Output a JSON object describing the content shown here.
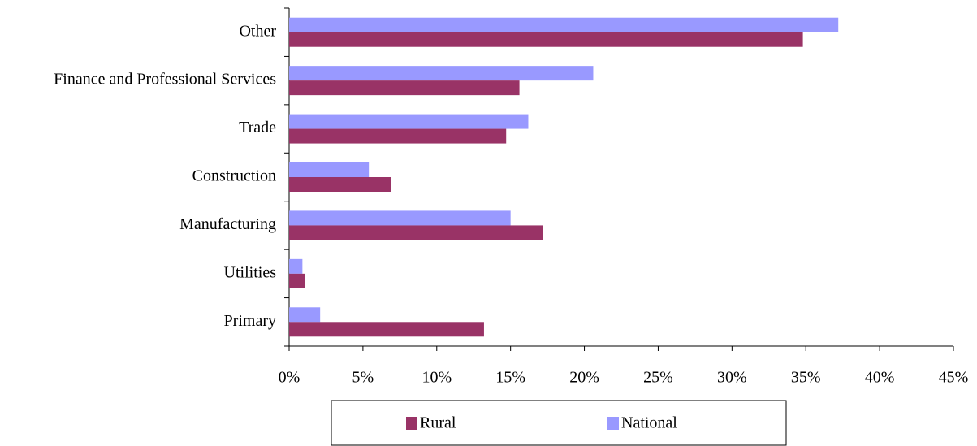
{
  "chart_data": {
    "type": "hbar",
    "categories": [
      "Other",
      "Finance and Professional Services",
      "Trade",
      "Construction",
      "Manufacturing",
      "Utilities",
      "Primary"
    ],
    "series": [
      {
        "name": "Rural",
        "color": "#993366",
        "values": [
          34.8,
          15.6,
          14.7,
          6.9,
          17.2,
          1.1,
          13.2
        ]
      },
      {
        "name": "National",
        "color": "#9999ff",
        "values": [
          37.2,
          20.6,
          16.2,
          5.4,
          15.0,
          0.9,
          2.1
        ]
      }
    ],
    "xlim": [
      0,
      45
    ],
    "xticks": [
      {
        "value": 0,
        "label": "0%"
      },
      {
        "value": 5,
        "label": "5%"
      },
      {
        "value": 10,
        "label": "10%"
      },
      {
        "value": 15,
        "label": "15%"
      },
      {
        "value": 20,
        "label": "20%"
      },
      {
        "value": 25,
        "label": "25%"
      },
      {
        "value": 30,
        "label": "30%"
      },
      {
        "value": 35,
        "label": "35%"
      },
      {
        "value": 40,
        "label": "40%"
      },
      {
        "value": 45,
        "label": "45%"
      }
    ],
    "legend": "bottom"
  }
}
